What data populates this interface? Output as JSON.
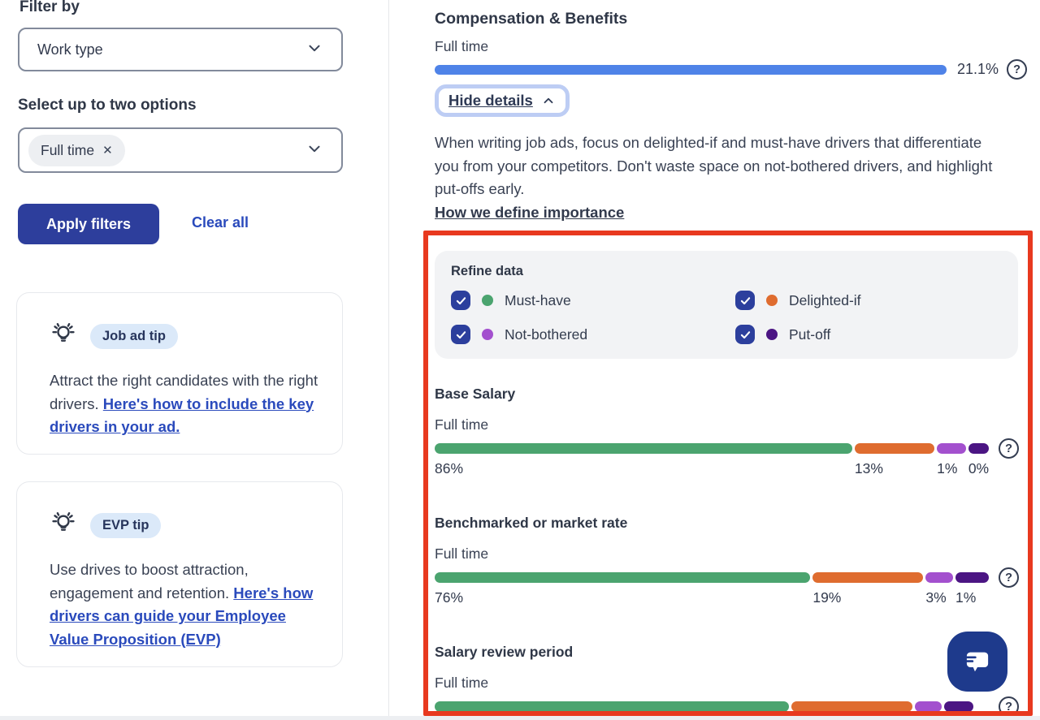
{
  "colors": {
    "accent_blue": "#4F83E8",
    "button_blue": "#2D3E9C",
    "link_blue": "#2A4ABC",
    "checkbox_blue": "#2C3F9D",
    "annotation_red": "#E8391F",
    "chat_navy": "#1E3A8C",
    "palette": [
      "#4BA46F",
      "#DF6C2F",
      "#A350CE",
      "#4B1583"
    ]
  },
  "sidebar": {
    "filter_by": "Filter by",
    "work_type": {
      "value": "Work type"
    },
    "options_label": "Select up to two options",
    "selected_chip": "Full time",
    "apply_button": "Apply filters",
    "clear_all": "Clear all",
    "tips": [
      {
        "badge": "Job ad tip",
        "text": "Attract the right candidates with the right drivers. ",
        "link": "Here's how to include the key drivers in your ad."
      },
      {
        "badge": "EVP tip",
        "text": "Use drives to boost attraction, engagement and retention. ",
        "link": "Here's how drivers can guide your Employee Value Proposition (EVP)"
      }
    ]
  },
  "main": {
    "title": "Compensation & Benefits",
    "overview": {
      "label": "Full time",
      "value": "21.1%"
    },
    "hide_details": "Hide details",
    "description": "When writing job ads, focus on delighted-if and must-have drivers that differentiate you from your competitors. Don't waste space on not-bothered drivers, and highlight put-offs early.",
    "importance_link": "How we define importance",
    "refine": {
      "title": "Refine data",
      "options": [
        {
          "label": "Must-have",
          "checked": true
        },
        {
          "label": "Delighted-if",
          "checked": true
        },
        {
          "label": "Not-bothered",
          "checked": true
        },
        {
          "label": "Put-off",
          "checked": true
        }
      ]
    },
    "drivers": [
      {
        "name": "Base Salary",
        "subtitle": "Full time",
        "segments": [
          {
            "value": "86%",
            "width_pct": 74.8
          },
          {
            "value": "13%",
            "width_pct": 14.3
          },
          {
            "value": "1%",
            "width_pct": 5.2
          },
          {
            "value": "0%",
            "width_pct": 3.7
          }
        ]
      },
      {
        "name": "Benchmarked or market rate",
        "subtitle": "Full time",
        "segments": [
          {
            "value": "76%",
            "width_pct": 67.3
          },
          {
            "value": "19%",
            "width_pct": 19.8
          },
          {
            "value": "3%",
            "width_pct": 4.9
          },
          {
            "value": "1%",
            "width_pct": 6.0
          }
        ]
      },
      {
        "name": "Salary review period",
        "subtitle": "Full time",
        "segments": [
          {
            "value": "",
            "width_pct": 63.4
          },
          {
            "value": "",
            "width_pct": 21.8
          },
          {
            "value": "",
            "width_pct": 4.8
          },
          {
            "value": "",
            "width_pct": 5.2
          }
        ]
      }
    ]
  }
}
